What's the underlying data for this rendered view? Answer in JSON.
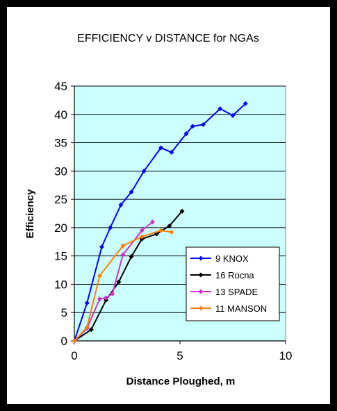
{
  "chart_data": {
    "type": "line",
    "title": "EFFICIENCY v DISTANCE for NGAs",
    "xlabel": "Distance Ploughed, m",
    "ylabel": "Efficiency",
    "xlim": [
      0,
      10
    ],
    "ylim": [
      0,
      45
    ],
    "xticks": [
      0,
      5,
      10
    ],
    "yticks": [
      0,
      5,
      10,
      15,
      20,
      25,
      30,
      35,
      40,
      45
    ],
    "grid": "horizontal",
    "plot_background": "#ccffff",
    "legend_position": "lower-right",
    "series": [
      {
        "name": "9  KNOX",
        "color": "#0000ff",
        "marker": "diamond",
        "points": [
          [
            0,
            0
          ],
          [
            0.6,
            6.7
          ],
          [
            1.3,
            16.6
          ],
          [
            1.7,
            20
          ],
          [
            2.2,
            24
          ],
          [
            2.7,
            26.3
          ],
          [
            3.3,
            30
          ],
          [
            4.1,
            34.1
          ],
          [
            4.6,
            33.3
          ],
          [
            5.3,
            36.6
          ],
          [
            5.6,
            37.9
          ],
          [
            6.1,
            38.2
          ],
          [
            6.9,
            41
          ],
          [
            7.5,
            39.8
          ],
          [
            8.1,
            41.9
          ]
        ]
      },
      {
        "name": "16 Rocna",
        "color": "#000000",
        "marker": "diamond",
        "points": [
          [
            0,
            0
          ],
          [
            0.8,
            2
          ],
          [
            1.5,
            7.2
          ],
          [
            2.1,
            10.4
          ],
          [
            2.7,
            14.9
          ],
          [
            3.2,
            18
          ],
          [
            3.9,
            18.9
          ],
          [
            4.5,
            20.3
          ],
          [
            5.1,
            22.9
          ]
        ]
      },
      {
        "name": "13 SPADE",
        "color": "#cc33cc",
        "marker": "diamond",
        "points": [
          [
            0,
            0
          ],
          [
            0.6,
            2.2
          ],
          [
            1.2,
            7.4
          ],
          [
            1.5,
            7.6
          ],
          [
            1.8,
            8.3
          ],
          [
            2.3,
            15.2
          ],
          [
            3.2,
            19.5
          ],
          [
            3.7,
            21
          ]
        ]
      },
      {
        "name": "11 MANSON",
        "color": "#ff8000",
        "marker": "diamond",
        "points": [
          [
            0,
            0
          ],
          [
            0.6,
            2.4
          ],
          [
            1.2,
            11.5
          ],
          [
            2.3,
            16.8
          ],
          [
            3.2,
            18.4
          ],
          [
            4.1,
            19.5
          ],
          [
            4.6,
            19.2
          ]
        ]
      }
    ]
  }
}
